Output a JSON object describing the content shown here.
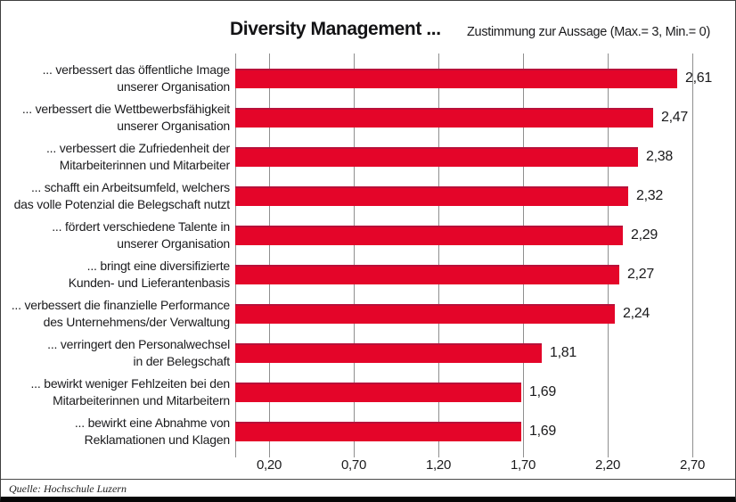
{
  "chart_data": {
    "type": "bar",
    "orientation": "horizontal",
    "title": "Diversity Management ...",
    "subtitle": "Zustimmung zur Aussage (Max.= 3, Min.= 0)",
    "categories": [
      "... verbessert das öffentliche Image unserer Organisation",
      "... verbessert die Wettbewerbsfähigkeit unserer Organisation",
      "... verbessert die Zufriedenheit der Mitarbeiterinnen und Mitarbeiter",
      "... schafft ein Arbeitsumfeld, welchers das volle Potenzial die Belegschaft nutzt",
      "... fördert verschiedene Talente in unserer Organisation",
      "... bringt eine diversifizierte Kunden- und Lieferantenbasis",
      "... verbessert die finanzielle Performance des Unternehmens/der Verwaltung",
      "... verringert den Personalwechsel in der Belegschaft",
      "... bewirkt weniger Fehlzeiten bei den Mitarbeiterinnen und Mitarbeitern",
      "... bewirkt eine Abnahme von Reklamationen und Klagen"
    ],
    "category_lines": [
      [
        "... verbessert das öffentliche Image",
        "unserer Organisation"
      ],
      [
        "... verbessert die Wettbewerbsfähigkeit",
        "unserer Organisation"
      ],
      [
        "... verbessert die Zufriedenheit der",
        "Mitarbeiterinnen und Mitarbeiter"
      ],
      [
        "... schafft ein Arbeitsumfeld, welchers",
        "das volle Potenzial die Belegschaft nutzt"
      ],
      [
        "... fördert verschiedene Talente in",
        "unserer Organisation"
      ],
      [
        "... bringt eine diversifizierte",
        "Kunden- und Lieferantenbasis"
      ],
      [
        "... verbessert die finanzielle Performance",
        "des Unternehmens/der Verwaltung"
      ],
      [
        "... verringert den Personalwechsel",
        "in der Belegschaft"
      ],
      [
        "... bewirkt weniger Fehlzeiten bei den",
        "Mitarbeiterinnen und Mitarbeitern"
      ],
      [
        "... bewirkt eine Abnahme von",
        "Reklamationen und Klagen"
      ]
    ],
    "values": [
      2.61,
      2.47,
      2.38,
      2.32,
      2.29,
      2.27,
      2.24,
      1.81,
      1.69,
      1.69
    ],
    "value_labels": [
      "2,61",
      "2,47",
      "2,38",
      "2,32",
      "2,29",
      "2,27",
      "2,24",
      "1,81",
      "1,69",
      "1,69"
    ],
    "xticks": [
      0.2,
      0.7,
      1.2,
      1.7,
      2.2,
      2.7
    ],
    "xtick_labels": [
      "0,20",
      "0,70",
      "1,20",
      "1,70",
      "2,20",
      "2,70"
    ],
    "xlim": [
      0,
      2.84
    ],
    "grid": "vertical",
    "legend": "none",
    "bar_color": "#e40529",
    "bar_edge_color": "#b8113a",
    "gridline_color": "#8f8f8f"
  },
  "footer": {
    "source": "Quelle: Hochschule Luzern"
  }
}
